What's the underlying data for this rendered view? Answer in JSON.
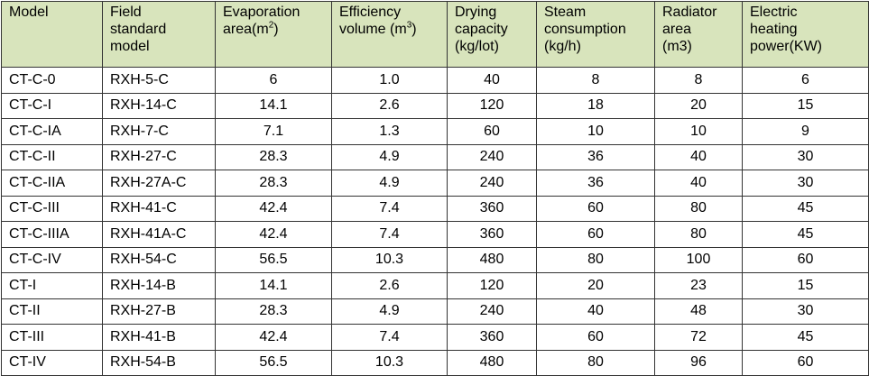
{
  "table": {
    "header": [
      [
        "Model"
      ],
      [
        "Field",
        "standard",
        "model"
      ],
      [
        "Evaporation",
        {
          "text": "area(m",
          "sup": "2",
          "tail": ")"
        }
      ],
      [
        "Efficiency",
        {
          "text": "volume (m",
          "sup": "3",
          "tail": ")"
        }
      ],
      [
        "Drying",
        "capacity",
        "(kg/lot)"
      ],
      [
        "Steam",
        "consumption",
        "(kg/h)"
      ],
      [
        "Radiator",
        "area",
        "(m3)"
      ],
      [
        "Electric",
        "heating",
        "power(KW)"
      ]
    ],
    "rows": [
      [
        "CT-C-0",
        "RXH-5-C",
        "6",
        "1.0",
        "40",
        "8",
        "8",
        "6"
      ],
      [
        "CT-C-I",
        "RXH-14-C",
        "14.1",
        "2.6",
        "120",
        "18",
        "20",
        "15"
      ],
      [
        "CT-C-IA",
        "RXH-7-C",
        "7.1",
        "1.3",
        "60",
        "10",
        "10",
        "9"
      ],
      [
        "CT-C-II",
        "RXH-27-C",
        "28.3",
        "4.9",
        "240",
        "36",
        "40",
        "30"
      ],
      [
        "CT-C-IIA",
        "RXH-27A-C",
        "28.3",
        "4.9",
        "240",
        "36",
        "40",
        "30"
      ],
      [
        "CT-C-III",
        "RXH-41-C",
        "42.4",
        "7.4",
        "360",
        "60",
        "80",
        "45"
      ],
      [
        "CT-C-IIIA",
        "RXH-41A-C",
        "42.4",
        "7.4",
        "360",
        "60",
        "80",
        "45"
      ],
      [
        "CT-C-IV",
        "RXH-54-C",
        "56.5",
        "10.3",
        "480",
        "80",
        "100",
        "60"
      ],
      [
        "CT-I",
        "RXH-14-B",
        "14.1",
        "2.6",
        "120",
        "20",
        "23",
        "15"
      ],
      [
        "CT-II",
        "RXH-27-B",
        "28.3",
        "4.9",
        "240",
        "40",
        "48",
        "30"
      ],
      [
        "CT-III",
        "RXH-41-B",
        "42.4",
        "7.4",
        "360",
        "60",
        "72",
        "45"
      ],
      [
        "CT-IV",
        "RXH-54-B",
        "56.5",
        "10.3",
        "480",
        "80",
        "96",
        "60"
      ]
    ]
  }
}
